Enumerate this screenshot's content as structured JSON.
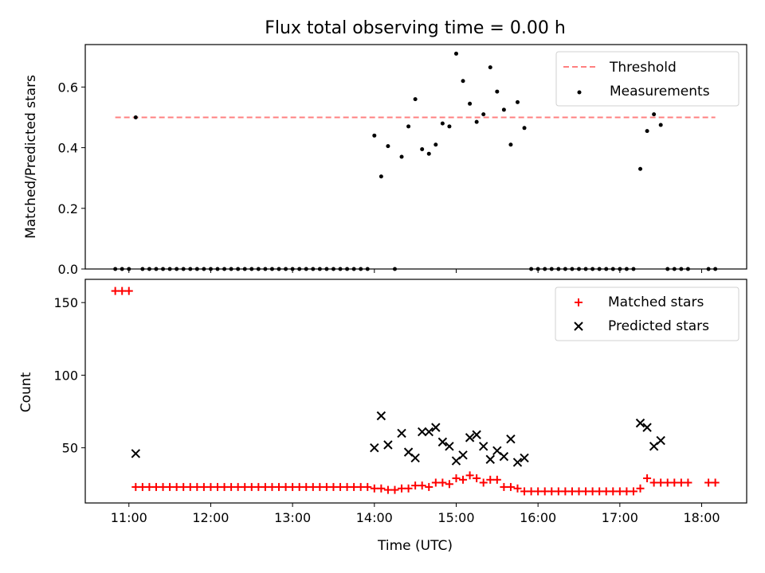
{
  "chart_data": [
    {
      "type": "scatter",
      "title": "Flux total observing time = 0.00 h",
      "xlabel": "",
      "ylabel": "Matched/Predicted stars",
      "xlim": [
        "10:28",
        "18:33"
      ],
      "ylim": [
        0,
        0.74
      ],
      "x_ticks": [
        "11:00",
        "12:00",
        "13:00",
        "14:00",
        "15:00",
        "16:00",
        "17:00",
        "18:00"
      ],
      "y_ticks": [
        "0.0",
        "0.2",
        "0.4",
        "0.6"
      ],
      "legend_position": "upper right",
      "threshold": {
        "name": "Threshold",
        "value": 0.5,
        "x_range": [
          "10:50",
          "18:10"
        ],
        "color": "#ff8080",
        "style": "dashed"
      },
      "series": [
        {
          "name": "Measurements",
          "color": "#000000",
          "marker": "dot",
          "points": [
            [
              "10:50",
              0
            ],
            [
              "10:55",
              0
            ],
            [
              "11:00",
              0
            ],
            [
              "11:05",
              0.5
            ],
            [
              "11:10",
              0
            ],
            [
              "11:15",
              0
            ],
            [
              "11:20",
              0
            ],
            [
              "11:25",
              0
            ],
            [
              "11:30",
              0
            ],
            [
              "11:35",
              0
            ],
            [
              "11:40",
              0
            ],
            [
              "11:45",
              0
            ],
            [
              "11:50",
              0
            ],
            [
              "11:55",
              0
            ],
            [
              "12:00",
              0
            ],
            [
              "12:05",
              0
            ],
            [
              "12:10",
              0
            ],
            [
              "12:15",
              0
            ],
            [
              "12:20",
              0
            ],
            [
              "12:25",
              0
            ],
            [
              "12:30",
              0
            ],
            [
              "12:35",
              0
            ],
            [
              "12:40",
              0
            ],
            [
              "12:45",
              0
            ],
            [
              "12:50",
              0
            ],
            [
              "12:55",
              0
            ],
            [
              "13:00",
              0
            ],
            [
              "13:05",
              0
            ],
            [
              "13:10",
              0
            ],
            [
              "13:15",
              0
            ],
            [
              "13:20",
              0
            ],
            [
              "13:25",
              0
            ],
            [
              "13:30",
              0
            ],
            [
              "13:35",
              0
            ],
            [
              "13:40",
              0
            ],
            [
              "13:45",
              0
            ],
            [
              "13:50",
              0
            ],
            [
              "13:55",
              0
            ],
            [
              "14:00",
              0.44
            ],
            [
              "14:05",
              0.305
            ],
            [
              "14:10",
              0.405
            ],
            [
              "14:15",
              0
            ],
            [
              "14:20",
              0.37
            ],
            [
              "14:25",
              0.47
            ],
            [
              "14:30",
              0.56
            ],
            [
              "14:35",
              0.395
            ],
            [
              "14:40",
              0.38
            ],
            [
              "14:45",
              0.41
            ],
            [
              "14:50",
              0.48
            ],
            [
              "14:55",
              0.47
            ],
            [
              "15:00",
              0.71
            ],
            [
              "15:05",
              0.62
            ],
            [
              "15:10",
              0.545
            ],
            [
              "15:15",
              0.485
            ],
            [
              "15:20",
              0.51
            ],
            [
              "15:25",
              0.665
            ],
            [
              "15:30",
              0.585
            ],
            [
              "15:35",
              0.525
            ],
            [
              "15:40",
              0.41
            ],
            [
              "15:45",
              0.55
            ],
            [
              "15:50",
              0.465
            ],
            [
              "15:55",
              0
            ],
            [
              "16:00",
              0
            ],
            [
              "16:05",
              0
            ],
            [
              "16:10",
              0
            ],
            [
              "16:15",
              0
            ],
            [
              "16:20",
              0
            ],
            [
              "16:25",
              0
            ],
            [
              "16:30",
              0
            ],
            [
              "16:35",
              0
            ],
            [
              "16:40",
              0
            ],
            [
              "16:45",
              0
            ],
            [
              "16:50",
              0
            ],
            [
              "16:55",
              0
            ],
            [
              "17:00",
              0
            ],
            [
              "17:05",
              0
            ],
            [
              "17:10",
              0
            ],
            [
              "17:15",
              0.33
            ],
            [
              "17:20",
              0.455
            ],
            [
              "17:25",
              0.51
            ],
            [
              "17:30",
              0.475
            ],
            [
              "17:35",
              0
            ],
            [
              "17:40",
              0
            ],
            [
              "17:45",
              0
            ],
            [
              "17:50",
              0
            ],
            [
              "18:05",
              0
            ],
            [
              "18:10",
              0
            ]
          ]
        }
      ]
    },
    {
      "type": "scatter",
      "title": "",
      "xlabel": "Time (UTC)",
      "ylabel": "Count",
      "xlim": [
        "10:28",
        "18:33"
      ],
      "ylim": [
        12,
        166
      ],
      "x_ticks": [
        "11:00",
        "12:00",
        "13:00",
        "14:00",
        "15:00",
        "16:00",
        "17:00",
        "18:00"
      ],
      "y_ticks": [
        "50",
        "100",
        "150"
      ],
      "legend_position": "upper right",
      "series": [
        {
          "name": "Matched stars",
          "color": "#ff0000",
          "marker": "plus",
          "points": [
            [
              "10:50",
              158
            ],
            [
              "10:55",
              158
            ],
            [
              "11:00",
              158
            ],
            [
              "11:05",
              23
            ],
            [
              "11:10",
              23
            ],
            [
              "11:15",
              23
            ],
            [
              "11:20",
              23
            ],
            [
              "11:25",
              23
            ],
            [
              "11:30",
              23
            ],
            [
              "11:35",
              23
            ],
            [
              "11:40",
              23
            ],
            [
              "11:45",
              23
            ],
            [
              "11:50",
              23
            ],
            [
              "11:55",
              23
            ],
            [
              "12:00",
              23
            ],
            [
              "12:05",
              23
            ],
            [
              "12:10",
              23
            ],
            [
              "12:15",
              23
            ],
            [
              "12:20",
              23
            ],
            [
              "12:25",
              23
            ],
            [
              "12:30",
              23
            ],
            [
              "12:35",
              23
            ],
            [
              "12:40",
              23
            ],
            [
              "12:45",
              23
            ],
            [
              "12:50",
              23
            ],
            [
              "12:55",
              23
            ],
            [
              "13:00",
              23
            ],
            [
              "13:05",
              23
            ],
            [
              "13:10",
              23
            ],
            [
              "13:15",
              23
            ],
            [
              "13:20",
              23
            ],
            [
              "13:25",
              23
            ],
            [
              "13:30",
              23
            ],
            [
              "13:35",
              23
            ],
            [
              "13:40",
              23
            ],
            [
              "13:45",
              23
            ],
            [
              "13:50",
              23
            ],
            [
              "13:55",
              23
            ],
            [
              "14:00",
              22
            ],
            [
              "14:05",
              22
            ],
            [
              "14:10",
              21
            ],
            [
              "14:15",
              21
            ],
            [
              "14:20",
              22
            ],
            [
              "14:25",
              22
            ],
            [
              "14:30",
              24
            ],
            [
              "14:35",
              24
            ],
            [
              "14:40",
              23
            ],
            [
              "14:45",
              26
            ],
            [
              "14:50",
              26
            ],
            [
              "14:55",
              25
            ],
            [
              "15:00",
              29
            ],
            [
              "15:05",
              28
            ],
            [
              "15:10",
              31
            ],
            [
              "15:15",
              29
            ],
            [
              "15:20",
              26
            ],
            [
              "15:25",
              28
            ],
            [
              "15:30",
              28
            ],
            [
              "15:35",
              23
            ],
            [
              "15:40",
              23
            ],
            [
              "15:45",
              22
            ],
            [
              "15:50",
              20
            ],
            [
              "15:55",
              20
            ],
            [
              "16:00",
              20
            ],
            [
              "16:05",
              20
            ],
            [
              "16:10",
              20
            ],
            [
              "16:15",
              20
            ],
            [
              "16:20",
              20
            ],
            [
              "16:25",
              20
            ],
            [
              "16:30",
              20
            ],
            [
              "16:35",
              20
            ],
            [
              "16:40",
              20
            ],
            [
              "16:45",
              20
            ],
            [
              "16:50",
              20
            ],
            [
              "16:55",
              20
            ],
            [
              "17:00",
              20
            ],
            [
              "17:05",
              20
            ],
            [
              "17:10",
              20
            ],
            [
              "17:15",
              22
            ],
            [
              "17:20",
              29
            ],
            [
              "17:25",
              26
            ],
            [
              "17:30",
              26
            ],
            [
              "17:35",
              26
            ],
            [
              "17:40",
              26
            ],
            [
              "17:45",
              26
            ],
            [
              "17:50",
              26
            ],
            [
              "18:05",
              26
            ],
            [
              "18:10",
              26
            ]
          ]
        },
        {
          "name": "Predicted stars",
          "color": "#000000",
          "marker": "x",
          "points": [
            [
              "11:05",
              46
            ],
            [
              "14:00",
              50
            ],
            [
              "14:05",
              72
            ],
            [
              "14:10",
              52
            ],
            [
              "14:20",
              60
            ],
            [
              "14:25",
              47
            ],
            [
              "14:30",
              43
            ],
            [
              "14:35",
              61
            ],
            [
              "14:40",
              61
            ],
            [
              "14:45",
              64
            ],
            [
              "14:50",
              54
            ],
            [
              "14:55",
              51
            ],
            [
              "15:00",
              41
            ],
            [
              "15:05",
              45
            ],
            [
              "15:10",
              57
            ],
            [
              "15:15",
              59
            ],
            [
              "15:20",
              51
            ],
            [
              "15:25",
              42
            ],
            [
              "15:30",
              48
            ],
            [
              "15:35",
              44
            ],
            [
              "15:40",
              56
            ],
            [
              "15:45",
              40
            ],
            [
              "15:50",
              43
            ],
            [
              "17:15",
              67
            ],
            [
              "17:20",
              64
            ],
            [
              "17:25",
              51
            ],
            [
              "17:30",
              55
            ]
          ]
        }
      ]
    }
  ]
}
